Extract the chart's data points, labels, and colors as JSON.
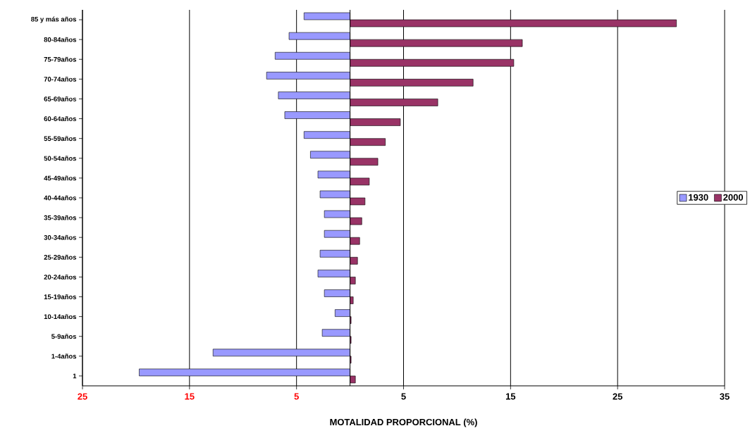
{
  "chart_data": {
    "type": "bar",
    "orientation": "horizontal",
    "xlabel": "MOTALIDAD PROPORCIONAL (%)",
    "categories": [
      "85 y más años",
      "80-84años",
      "75-79años",
      "70-74años",
      "65-69años",
      "60-64años",
      "55-59años",
      "50-54años",
      "45-49años",
      "40-44años",
      "35-39años",
      "30-34años",
      "25-29años",
      "20-24años",
      "15-19años",
      "10-14años",
      "5-9años",
      "1-4años",
      "1"
    ],
    "series": [
      {
        "name": "1930",
        "color": "#9999ff",
        "values": [
          -4.3,
          -5.7,
          -7.0,
          -7.8,
          -6.7,
          -6.1,
          -4.3,
          -3.7,
          -3.0,
          -2.8,
          -2.4,
          -2.4,
          -2.8,
          -3.0,
          -2.4,
          -1.4,
          -2.6,
          -12.8,
          -19.7
        ]
      },
      {
        "name": "2000",
        "color": "#993366",
        "values": [
          30.5,
          16.1,
          15.3,
          11.5,
          8.2,
          4.7,
          3.3,
          2.6,
          1.8,
          1.4,
          1.1,
          0.9,
          0.7,
          0.5,
          0.3,
          0.1,
          0.1,
          0.1,
          0.5
        ]
      }
    ],
    "xlim": [
      -25,
      35
    ],
    "xticks": [
      {
        "value": -25,
        "label": "25"
      },
      {
        "value": -15,
        "label": "15"
      },
      {
        "value": -5,
        "label": "5"
      },
      5,
      15,
      25,
      35
    ],
    "grid": "x",
    "legend": "right"
  }
}
